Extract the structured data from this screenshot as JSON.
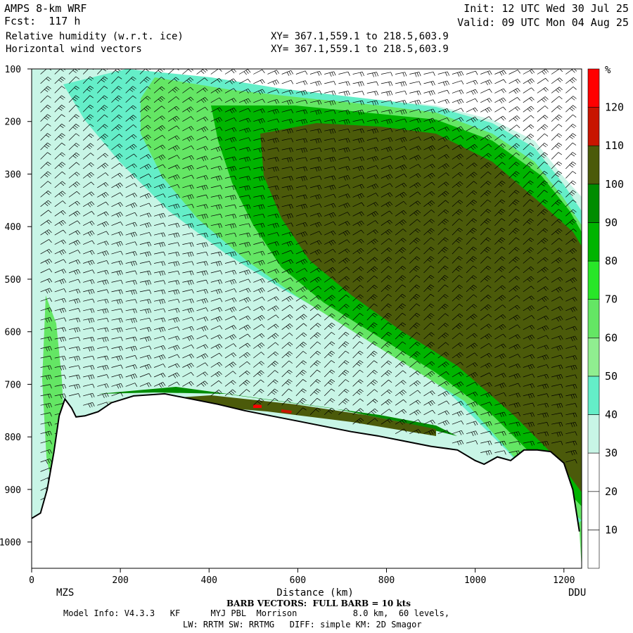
{
  "header": {
    "model": "AMPS 8-km WRF",
    "forecast": "Fcst:  117 h",
    "field1": "Relative humidity (w.r.t. ice)",
    "field2": "Horizontal wind vectors",
    "xy1": "XY= 367.1,559.1 to 218.5,603.9",
    "xy2": "XY= 367.1,559.1 to 218.5,603.9",
    "init": "Init: 12 UTC Wed 30 Jul 25",
    "valid": "Valid: 09 UTC Mon 04 Aug 25"
  },
  "chart_data": {
    "type": "heatmap",
    "xlabel": "Distance (km)",
    "xlim": [
      0,
      1240
    ],
    "x_ticks": [
      0,
      200,
      400,
      600,
      800,
      1000,
      1200
    ],
    "ylim": [
      1050,
      100
    ],
    "y_ticks": [
      100,
      200,
      300,
      400,
      500,
      600,
      700,
      800,
      900,
      1000
    ],
    "endpoints": {
      "left": "MZS",
      "right": "DDU"
    },
    "colorbar": {
      "unit": "%",
      "levels": [
        10,
        20,
        30,
        40,
        50,
        60,
        70,
        80,
        90,
        100,
        110,
        120
      ],
      "colors": [
        "#ffffff",
        "#ffffff",
        "#ffffff",
        "#c8f5e6",
        "#64eec8",
        "#90ee90",
        "#64e664",
        "#28e628",
        "#00b400",
        "#008c00",
        "#4b5a0a",
        "#c81400",
        "#ff0000"
      ]
    },
    "terrain": {
      "x_km": [
        0,
        20,
        35,
        50,
        62,
        75,
        90,
        100,
        120,
        150,
        180,
        230,
        300,
        360,
        420,
        480,
        540,
        600,
        660,
        720,
        780,
        840,
        900,
        960,
        1000,
        1020,
        1050,
        1080,
        1110,
        1140,
        1170,
        1200,
        1220,
        1235
      ],
      "p_hpa": [
        955,
        945,
        900,
        830,
        760,
        728,
        745,
        762,
        760,
        752,
        735,
        722,
        718,
        728,
        738,
        750,
        760,
        770,
        780,
        790,
        798,
        808,
        818,
        825,
        845,
        852,
        838,
        845,
        825,
        825,
        828,
        850,
        900,
        980
      ]
    },
    "barbs_note": "BARB VECTORS:  FULL BARB = 10 kts"
  },
  "footer": {
    "barb": "BARB VECTORS:  FULL BARB = 10 kts",
    "model_info": "Model Info: V4.3.3   KF      MYJ PBL  Morrison           8.0 km,  60 levels,",
    "physics": "LW: RRTM SW: RRTMG   DIFF: simple KM: 2D Smagor"
  }
}
